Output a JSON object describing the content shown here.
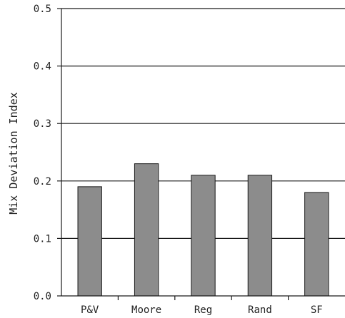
{
  "chart_data": {
    "type": "bar",
    "title": "",
    "xlabel": "",
    "ylabel": "Mix Deviation Index",
    "categories": [
      "P&V",
      "Moore",
      "Reg",
      "Rand",
      "SF"
    ],
    "values": [
      0.19,
      0.23,
      0.21,
      0.21,
      0.18
    ],
    "ylim": [
      0,
      0.5
    ],
    "yticks": [
      "0.0",
      "0.1",
      "0.2",
      "0.3",
      "0.4",
      "0.5"
    ],
    "grid": "horizontal",
    "legend": "none",
    "bar_color": "#8c8c8c",
    "bar_edge_color": "#1a1a1a"
  }
}
